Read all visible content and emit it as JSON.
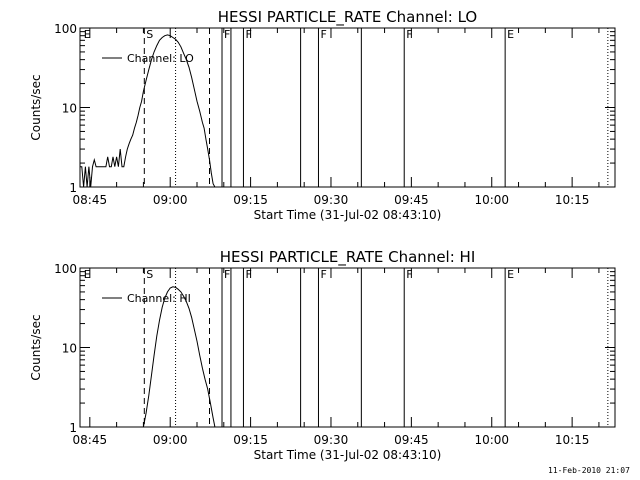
{
  "footer_stamp": "11-Feb-2010 21:07",
  "chart_data": [
    {
      "type": "line",
      "title": "HESSI PARTICLE_RATE Channel: LO",
      "xlabel": "Start Time (31-Jul-02 08:43:10)",
      "ylabel": "Counts/sec",
      "yscale": "log",
      "ylim": [
        1,
        100
      ],
      "xlim": [
        "08:43:10",
        "10:23:00"
      ],
      "x_ticks": [
        "08:45",
        "09:00",
        "09:15",
        "09:30",
        "09:45",
        "10:00",
        "10:15"
      ],
      "y_ticks": [
        "1",
        "10",
        "100"
      ],
      "legend": "Channel: LO",
      "legend_position": "top-left",
      "series": [
        {
          "name": "Channel: LO",
          "x": [
            "08:43:10",
            "08:43:30",
            "08:43:50",
            "08:44:10",
            "08:44:30",
            "08:44:50",
            "08:45:10",
            "08:45:30",
            "08:45:50",
            "08:46:10",
            "08:46:30",
            "08:47:00",
            "08:47:30",
            "08:48:00",
            "08:48:20",
            "08:48:40",
            "08:49:00",
            "08:49:20",
            "08:49:40",
            "08:50:00",
            "08:50:20",
            "08:50:40",
            "08:51:00",
            "08:51:20",
            "08:51:40",
            "08:52:00",
            "08:52:20",
            "08:52:40",
            "08:53:00",
            "08:53:20",
            "08:53:40",
            "08:54:00",
            "08:54:20",
            "08:54:40",
            "08:55:00",
            "08:55:30",
            "08:56:00",
            "08:56:30",
            "08:57:00",
            "08:57:30",
            "08:58:00",
            "08:58:30",
            "08:59:00",
            "08:59:30",
            "09:00:00",
            "09:00:30",
            "09:01:00",
            "09:01:30",
            "09:02:00",
            "09:02:30",
            "09:03:00",
            "09:03:30",
            "09:04:00",
            "09:04:30",
            "09:05:00",
            "09:05:30",
            "09:06:00",
            "09:06:20",
            "09:06:40",
            "09:07:00",
            "09:07:20",
            "09:07:40",
            "09:08:00",
            "09:08:20",
            "09:08:40",
            "09:09:00"
          ],
          "y": [
            1.8,
            1.8,
            1.0,
            1.8,
            1.0,
            1.8,
            1.0,
            1.8,
            2.2,
            1.8,
            1.8,
            1.8,
            1.8,
            1.8,
            2.4,
            1.8,
            1.8,
            2.4,
            1.8,
            2.4,
            1.8,
            3.0,
            1.8,
            1.8,
            2.4,
            3.0,
            3.5,
            4.0,
            4.5,
            5.5,
            6.5,
            8.0,
            10,
            12,
            16,
            22,
            30,
            40,
            50,
            60,
            70,
            76,
            80,
            82,
            80,
            76,
            72,
            66,
            58,
            48,
            40,
            32,
            24,
            17,
            12,
            9,
            6.5,
            5.5,
            4.0,
            3.0,
            2.2,
            1.5,
            1.1,
            1.0,
            1.0,
            1.0
          ]
        }
      ],
      "markers": [
        {
          "time": "08:43:30",
          "label": "E",
          "style": "none"
        },
        {
          "time": "08:55:10",
          "label": "S",
          "style": "dashed"
        },
        {
          "time": "09:01:00",
          "label": "",
          "style": "dotted"
        },
        {
          "time": "09:07:20",
          "label": "",
          "style": "dashed"
        },
        {
          "time": "09:09:40",
          "label": "F",
          "style": "solid"
        },
        {
          "time": "09:11:20",
          "label": "",
          "style": "solid"
        },
        {
          "time": "09:13:40",
          "label": "F",
          "style": "solid"
        },
        {
          "time": "09:24:20",
          "label": "",
          "style": "solid"
        },
        {
          "time": "09:27:40",
          "label": "F",
          "style": "solid"
        },
        {
          "time": "09:35:40",
          "label": "",
          "style": "solid"
        },
        {
          "time": "09:43:40",
          "label": "F",
          "style": "solid"
        },
        {
          "time": "10:02:30",
          "label": "E",
          "style": "solid"
        },
        {
          "time": "10:21:40",
          "label": "",
          "style": "dotted"
        }
      ]
    },
    {
      "type": "line",
      "title": "HESSI PARTICLE_RATE Channel: HI",
      "xlabel": "Start Time (31-Jul-02 08:43:10)",
      "ylabel": "Counts/sec",
      "yscale": "log",
      "ylim": [
        1,
        100
      ],
      "xlim": [
        "08:43:10",
        "10:23:00"
      ],
      "x_ticks": [
        "08:45",
        "09:00",
        "09:15",
        "09:30",
        "09:45",
        "10:00",
        "10:15"
      ],
      "y_ticks": [
        "1",
        "10",
        "100"
      ],
      "legend": "Channel: HI",
      "legend_position": "top-left",
      "series": [
        {
          "name": "Channel: HI",
          "x": [
            "08:55:00",
            "08:55:30",
            "08:56:00",
            "08:56:30",
            "08:57:00",
            "08:57:30",
            "08:58:00",
            "08:58:30",
            "08:59:00",
            "08:59:30",
            "09:00:00",
            "09:00:30",
            "09:01:00",
            "09:01:30",
            "09:02:00",
            "09:02:30",
            "09:03:00",
            "09:03:30",
            "09:04:00",
            "09:04:30",
            "09:05:00",
            "09:05:30",
            "09:06:00",
            "09:06:30",
            "09:07:00",
            "09:07:30",
            "09:08:00",
            "09:08:20"
          ],
          "y": [
            1.0,
            1.5,
            2.5,
            4.5,
            8,
            14,
            22,
            32,
            42,
            50,
            56,
            58,
            57,
            54,
            50,
            44,
            38,
            31,
            24,
            17,
            12,
            8,
            5.5,
            4.0,
            3.0,
            2.0,
            1.3,
            1.0
          ]
        }
      ],
      "markers": [
        {
          "time": "08:43:30",
          "label": "E",
          "style": "none"
        },
        {
          "time": "08:55:10",
          "label": "S",
          "style": "dashed"
        },
        {
          "time": "09:01:00",
          "label": "",
          "style": "dotted"
        },
        {
          "time": "09:07:20",
          "label": "",
          "style": "dashed"
        },
        {
          "time": "09:09:40",
          "label": "F",
          "style": "solid"
        },
        {
          "time": "09:11:20",
          "label": "",
          "style": "solid"
        },
        {
          "time": "09:13:40",
          "label": "F",
          "style": "solid"
        },
        {
          "time": "09:24:20",
          "label": "",
          "style": "solid"
        },
        {
          "time": "09:27:40",
          "label": "F",
          "style": "solid"
        },
        {
          "time": "09:35:40",
          "label": "",
          "style": "solid"
        },
        {
          "time": "09:43:40",
          "label": "F",
          "style": "solid"
        },
        {
          "time": "10:02:30",
          "label": "E",
          "style": "solid"
        },
        {
          "time": "10:21:40",
          "label": "",
          "style": "dotted"
        }
      ]
    }
  ]
}
